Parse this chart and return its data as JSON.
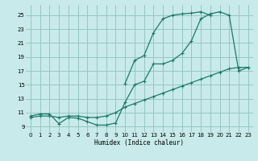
{
  "xlabel": "Humidex (Indice chaleur)",
  "bg_color": "#c8eaea",
  "grid_color": "#90c0c0",
  "line_color": "#1a7a6a",
  "xlim": [
    -0.5,
    23.5
  ],
  "ylim": [
    8.2,
    26.5
  ],
  "xticks": [
    0,
    1,
    2,
    3,
    4,
    5,
    6,
    7,
    8,
    9,
    10,
    11,
    12,
    13,
    14,
    15,
    16,
    17,
    18,
    19,
    20,
    21,
    22,
    23
  ],
  "yticks": [
    9,
    11,
    13,
    15,
    17,
    19,
    21,
    23,
    25
  ],
  "curveA_x": [
    0,
    1,
    2,
    3,
    4,
    5,
    6,
    7,
    8,
    9,
    10,
    11,
    12,
    13,
    14,
    15,
    16,
    17,
    18,
    19,
    20,
    21,
    22,
    23
  ],
  "curveA_y": [
    10.5,
    10.8,
    10.8,
    9.4,
    10.3,
    10.2,
    9.7,
    9.2,
    9.2,
    9.5,
    12.5,
    15.0,
    15.5,
    18.0,
    18.0,
    18.5,
    19.5,
    21.3,
    24.5,
    25.2,
    25.5,
    25.0,
    17.0,
    17.5
  ],
  "curveB_x": [
    10,
    11,
    12,
    13,
    14,
    15,
    16,
    17,
    18,
    19
  ],
  "curveB_y": [
    15.2,
    18.5,
    19.2,
    22.5,
    24.5,
    25.0,
    25.2,
    25.3,
    25.5,
    25.0
  ],
  "curveC_x": [
    0,
    1,
    2,
    3,
    4,
    5,
    6,
    7,
    8,
    9,
    10,
    11,
    12,
    13,
    14,
    15,
    16,
    17,
    18,
    19,
    20,
    21,
    22,
    23
  ],
  "curveC_y": [
    10.3,
    10.5,
    10.5,
    10.3,
    10.5,
    10.5,
    10.3,
    10.3,
    10.5,
    11.0,
    11.8,
    12.3,
    12.8,
    13.3,
    13.8,
    14.3,
    14.8,
    15.3,
    15.8,
    16.3,
    16.8,
    17.3,
    17.5,
    17.5
  ]
}
